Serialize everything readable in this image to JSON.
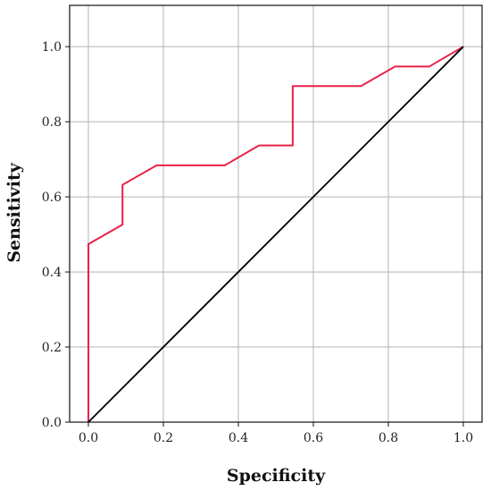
{
  "chart_data": {
    "type": "line",
    "title": "",
    "xlabel": "Specificity",
    "ylabel": "Sensitivity",
    "xlim": [
      -0.05,
      1.05
    ],
    "ylim": [
      0,
      1.11
    ],
    "xticks": [
      0.0,
      0.2,
      0.4,
      0.6,
      0.8,
      1.0
    ],
    "yticks": [
      0.0,
      0.2,
      0.4,
      0.6,
      0.8,
      1.0
    ],
    "xtick_labels": [
      "0.0",
      "0.2",
      "0.4",
      "0.6",
      "0.8",
      "1.0"
    ],
    "ytick_labels": [
      "0.0",
      "0.2",
      "0.4",
      "0.6",
      "0.8",
      "1.0"
    ],
    "grid": true,
    "legend": "none",
    "series": [
      {
        "color": "#e8224a",
        "x": [
          0.0,
          0.0,
          0.091,
          0.091,
          0.182,
          0.364,
          0.455,
          0.545,
          0.545,
          0.727,
          0.818,
          0.909,
          1.0
        ],
        "y": [
          0.0,
          0.474,
          0.526,
          0.632,
          0.684,
          0.684,
          0.737,
          0.737,
          0.895,
          0.895,
          0.947,
          0.947,
          1.0
        ]
      },
      {
        "color": "#000000",
        "x": [
          0.0,
          1.0
        ],
        "y": [
          0.0,
          1.0
        ]
      }
    ]
  }
}
